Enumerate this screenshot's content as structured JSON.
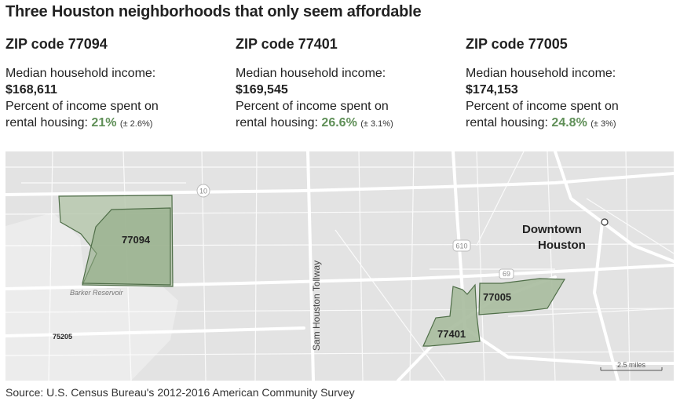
{
  "title": "Three Houston neighborhoods that only seem affordable",
  "zips": [
    {
      "heading": "ZIP code 77094",
      "income_label": "Median household income:",
      "income": "$168,611",
      "pct_label_1": "Percent of income spent on",
      "pct_label_2": "rental housing:",
      "pct": "21%",
      "moe": "(± 2.6%)"
    },
    {
      "heading": "ZIP code 77401",
      "income_label": "Median household income:",
      "income": "$169,545",
      "pct_label_1": "Percent of income spent on",
      "pct_label_2": "rental housing:",
      "pct": "26.6%",
      "moe": "(± 3.1%)"
    },
    {
      "heading": "ZIP code 77005",
      "income_label": "Median household income:",
      "income": "$174,153",
      "pct_label_1": "Percent of income spent on",
      "pct_label_2": "rental housing:",
      "pct": "24.8%",
      "moe": "(± 3%)"
    }
  ],
  "map": {
    "zip_labels": [
      "77094",
      "77401",
      "77005"
    ],
    "place_labels": {
      "downtown_line1": "Downtown",
      "downtown_line2": "Houston",
      "reservoir": "Barker Reservoir",
      "tollway": "Sam Houston Tollway",
      "other_zip": "75205"
    },
    "highway_shields": [
      "10",
      "610",
      "69"
    ],
    "scale_label": "2.5 miles",
    "colors": {
      "land": "#e3e3e3",
      "road": "#ffffff",
      "zip_fill": "#9fb594",
      "zip_stroke": "#4f6e48",
      "highlight_text": "#5f8f57"
    }
  },
  "source": "Source: U.S. Census Bureau's 2012-2016 American Community Survey"
}
